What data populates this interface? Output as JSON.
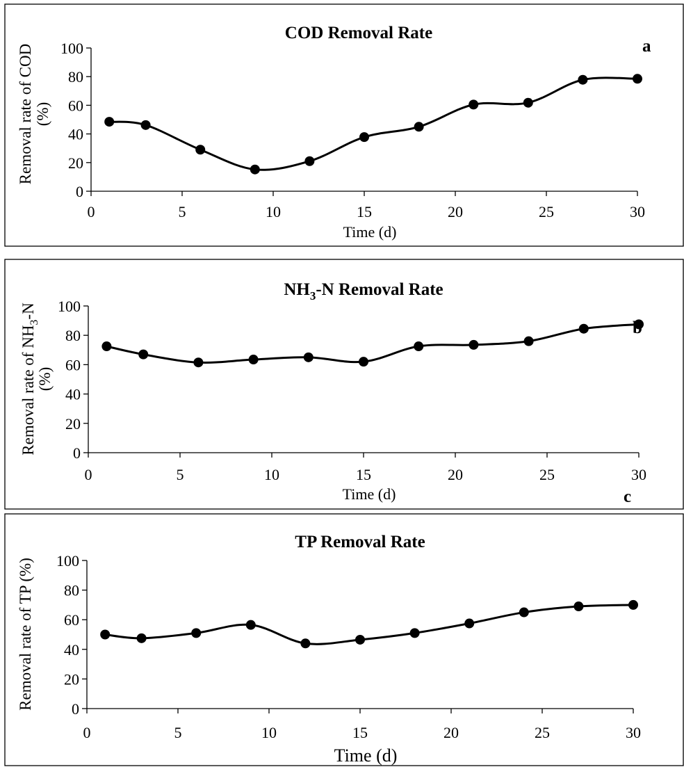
{
  "chart_data": [
    {
      "type": "line",
      "title": "COD Removal Rate",
      "panel_label": "a",
      "xlabel": "Time (d)",
      "ylabel_lines": [
        "Removal rate of COD",
        "(%)"
      ],
      "xlim": [
        0,
        30
      ],
      "ylim": [
        0,
        100
      ],
      "x_ticks": [
        "0",
        "5",
        "10",
        "15",
        "20",
        "25",
        "30"
      ],
      "y_ticks": [
        "0",
        "20",
        "40",
        "60",
        "80",
        "100"
      ],
      "grid": false,
      "smooth": true,
      "x": [
        1,
        3,
        6,
        9,
        12,
        15,
        18,
        21,
        24,
        27,
        30
      ],
      "y": [
        48.5,
        46.2,
        29.0,
        15.2,
        21.0,
        37.8,
        45.0,
        60.5,
        61.8,
        77.8,
        78.5
      ]
    },
    {
      "type": "line",
      "title": "NH3-N Removal Rate",
      "title_parts": [
        "NH",
        "3",
        "-N Removal Rate"
      ],
      "panel_label": "b",
      "xlabel": "Time (d)",
      "ylabel_lines": [
        "Removal rate of NH3-N",
        "(%)"
      ],
      "ylabel_parts": [
        "Removal rate of NH",
        "3",
        "-N"
      ],
      "xlim": [
        0,
        30
      ],
      "ylim": [
        0,
        100
      ],
      "x_ticks": [
        "0",
        "5",
        "10",
        "15",
        "20",
        "25",
        "30"
      ],
      "y_ticks": [
        "0",
        "20",
        "40",
        "60",
        "80",
        "100"
      ],
      "grid": false,
      "smooth": true,
      "x": [
        1,
        3,
        6,
        9,
        12,
        15,
        18,
        21,
        24,
        27,
        30
      ],
      "y": [
        72.5,
        67.0,
        61.5,
        63.5,
        65.0,
        62.0,
        72.5,
        73.5,
        76.0,
        84.5,
        87.5
      ]
    },
    {
      "type": "line",
      "title": "TP Removal Rate",
      "panel_label": "c",
      "xlabel": "Time (d)",
      "ylabel_lines": [
        "Removal rate of TP (%)"
      ],
      "xlim": [
        0,
        30
      ],
      "ylim": [
        0,
        100
      ],
      "x_ticks": [
        "0",
        "5",
        "10",
        "15",
        "20",
        "25",
        "30"
      ],
      "y_ticks": [
        "0",
        "20",
        "40",
        "60",
        "80",
        "100"
      ],
      "grid": false,
      "smooth": true,
      "x": [
        1,
        3,
        6,
        9,
        12,
        15,
        18,
        21,
        24,
        27,
        30
      ],
      "y": [
        50.0,
        47.5,
        51.0,
        56.5,
        44.0,
        46.5,
        51.0,
        57.5,
        65.0,
        69.0,
        70.0
      ]
    }
  ]
}
